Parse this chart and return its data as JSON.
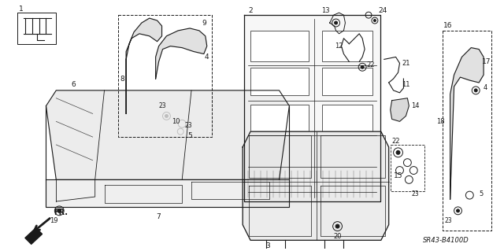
{
  "part_number": "SR43-B4100D",
  "background_color": "#ffffff",
  "line_color": "#1a1a1a"
}
